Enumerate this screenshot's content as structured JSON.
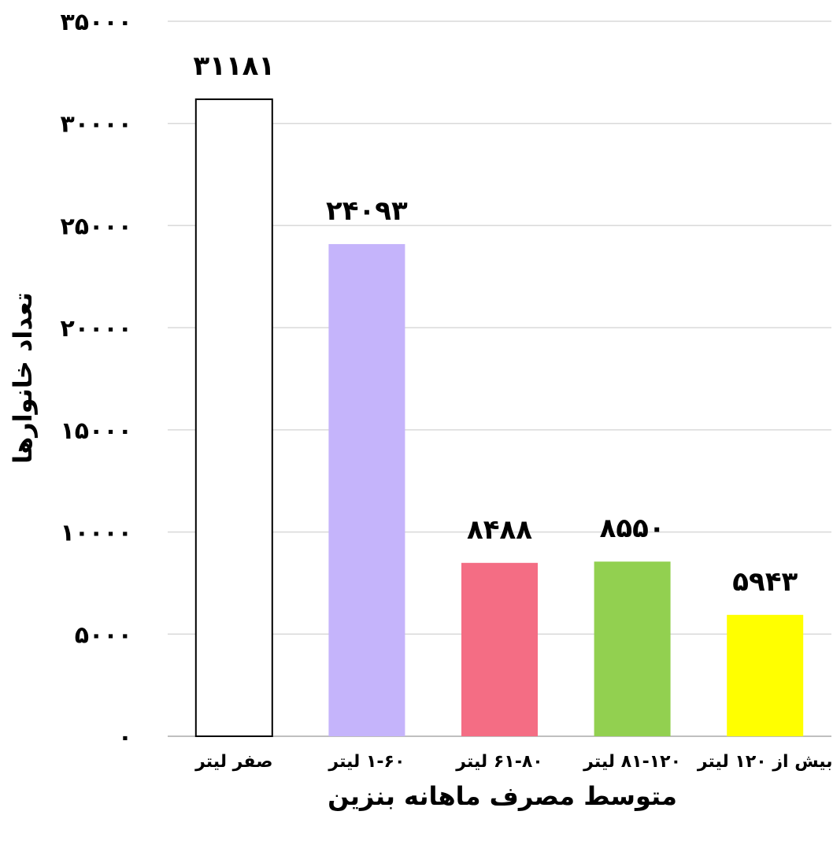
{
  "chart_data": {
    "type": "bar",
    "categories": [
      "صفر لیتر",
      "۱-۶۰ لیتر",
      "۶۱-۸۰ لیتر",
      "۸۱-۱۲۰ لیتر",
      "بیش از ۱۲۰ لیتر"
    ],
    "values": [
      31181,
      24093,
      8488,
      8550,
      5943
    ],
    "data_labels": [
      "۳۱۱۸۱",
      "۲۴۰۹۳",
      "۸۴۸۸",
      "۸۵۵۰",
      "۵۹۴۳"
    ],
    "colors": [
      "#ffffff",
      "#c5b4fb",
      "#f46d84",
      "#92d050",
      "#ffff00"
    ],
    "bar_outline": [
      "#000000",
      "none",
      "none",
      "none",
      "none"
    ],
    "xlabel": "متوسط مصرف ماهانه بنزین",
    "ylabel": "تعداد خانوارها",
    "ylim": [
      0,
      35000
    ],
    "yticks": [
      0,
      5000,
      10000,
      15000,
      20000,
      25000,
      30000,
      35000
    ],
    "ytick_labels": [
      "۰",
      "۵۰۰۰",
      "۱۰۰۰۰",
      "۱۵۰۰۰",
      "۲۰۰۰۰",
      "۲۵۰۰۰",
      "۳۰۰۰۰",
      "۳۵۰۰۰"
    ],
    "grid": true,
    "gridline_color": "#d9d9d9"
  }
}
